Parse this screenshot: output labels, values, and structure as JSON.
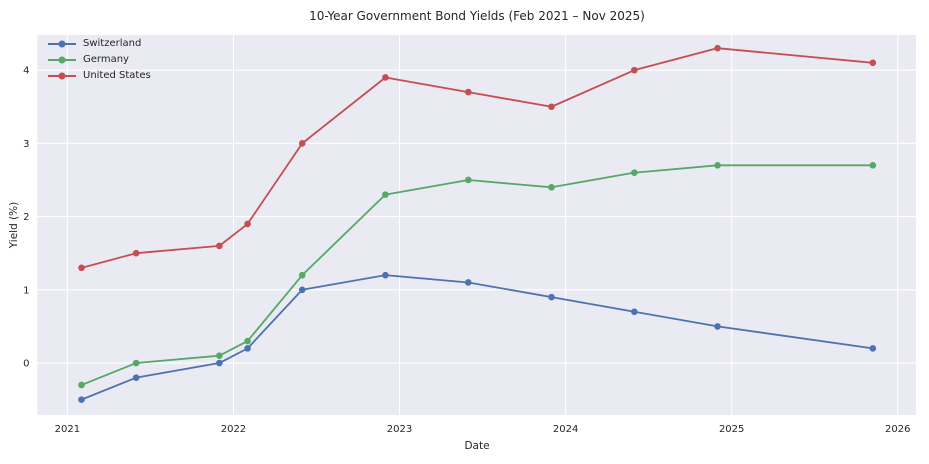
{
  "chart_data": {
    "type": "line",
    "title": "10-Year Government Bond Yields (Feb 2021 – Nov 2025)",
    "xlabel": "Date",
    "ylabel": "Yield (%)",
    "x_tick_labels": [
      "2021",
      "2022",
      "2023",
      "2024",
      "2025",
      "2026"
    ],
    "x_tick_values": [
      2021,
      2022,
      2023,
      2024,
      2025,
      2026
    ],
    "y_tick_labels": [
      "0",
      "1",
      "2",
      "3",
      "4"
    ],
    "y_tick_values": [
      0,
      1,
      2,
      3,
      4
    ],
    "xlim": [
      2020.82,
      2026.11
    ],
    "ylim": [
      -0.71,
      4.48
    ],
    "grid": true,
    "legend_position": "upper-left",
    "point_dates": [
      "Feb 2021",
      "Jun 2021",
      "Dec 2021",
      "Feb 2022",
      "Jun 2022",
      "Dec 2022",
      "Jun 2023",
      "Dec 2023",
      "Jun 2024",
      "Dec 2024",
      "Nov 2025"
    ],
    "x": [
      2021.085,
      2021.414,
      2021.915,
      2022.085,
      2022.414,
      2022.915,
      2023.414,
      2023.915,
      2024.414,
      2024.915,
      2025.85
    ],
    "series": [
      {
        "name": "Switzerland",
        "color": "#4C72B0",
        "values": [
          -0.5,
          -0.2,
          0.0,
          0.2,
          1.0,
          1.2,
          1.1,
          0.9,
          0.7,
          0.5,
          0.2
        ]
      },
      {
        "name": "Germany",
        "color": "#55A868",
        "values": [
          -0.3,
          0.0,
          0.1,
          0.3,
          1.2,
          2.3,
          2.5,
          2.4,
          2.6,
          2.7,
          2.7
        ]
      },
      {
        "name": "United States",
        "color": "#C44E52",
        "values": [
          1.3,
          1.5,
          1.6,
          1.9,
          3.0,
          3.9,
          3.7,
          3.5,
          4.0,
          4.3,
          4.1
        ]
      }
    ],
    "colors": {
      "plot_background": "#EAEAF2",
      "grid": "#FFFFFF",
      "text": "#262626"
    }
  }
}
